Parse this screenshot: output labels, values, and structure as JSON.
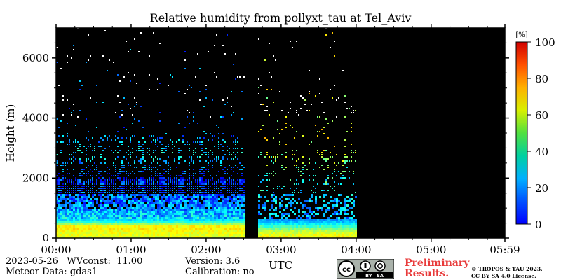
{
  "chart_data": {
    "type": "heatmap",
    "title": "Relative humidity from pollyxt_tau at Tel_Aviv",
    "xlabel": "UTC",
    "ylabel": "Height (m)",
    "x_ticks": [
      "00:00",
      "01:00",
      "02:00",
      "03:00",
      "04:00",
      "05:00",
      "05:59"
    ],
    "y_ticks": [
      "0",
      "2000",
      "4000",
      "6000"
    ],
    "ylim": [
      0,
      7000
    ],
    "xlim": [
      "00:00",
      "05:59"
    ],
    "colorbar": {
      "unit_label": "[%]",
      "ticks": [
        "0",
        "20",
        "40",
        "60",
        "80",
        "100"
      ],
      "range": [
        0,
        100
      ],
      "colormap": "jet"
    },
    "gap": {
      "start": "02:30",
      "end": "02:40"
    },
    "data_end": "04:00",
    "profile": [
      {
        "height_m": 100,
        "rh_before_gap": 60,
        "rh_after_gap": 62
      },
      {
        "height_m": 300,
        "rh_before_gap": 62,
        "rh_after_gap": 55
      },
      {
        "height_m": 400,
        "rh_before_gap": 66,
        "rh_after_gap": 45
      },
      {
        "height_m": 600,
        "rh_before_gap": 35,
        "rh_after_gap": 28
      },
      {
        "height_m": 1000,
        "rh_before_gap": 28,
        "rh_after_gap": 30
      },
      {
        "height_m": 1500,
        "rh_before_gap": 22,
        "rh_after_gap": 35
      },
      {
        "height_m": 2000,
        "rh_before_gap": 15,
        "rh_after_gap": 40
      },
      {
        "height_m": 2800,
        "rh_before_gap": 35,
        "rh_after_gap": 55
      },
      {
        "height_m": 3500,
        "rh_before_gap": 25,
        "rh_after_gap": 60
      }
    ]
  },
  "footer": {
    "date_wv": "2023-05-26   WVconst:  11.00",
    "meteor": "Meteor Data: gdas1",
    "version": "Version: 3.6",
    "calibration": "Calibration: no",
    "prelim": "Preliminary\nResults.",
    "copyright": "© TROPOS & TAU 2023.\nCC BY SA 4.0 License.",
    "cc_badge": {
      "left": "cc",
      "right": "BY   SA"
    }
  }
}
